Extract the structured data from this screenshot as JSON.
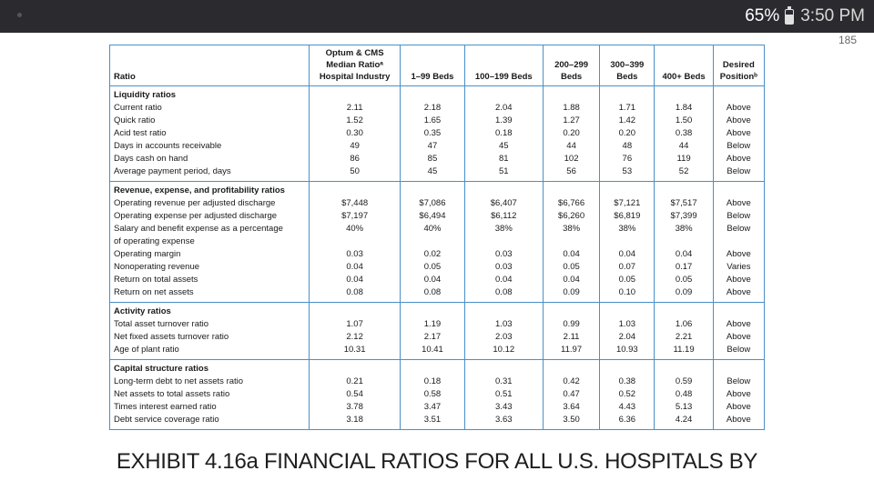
{
  "status_bar": {
    "battery": "65%",
    "time": "3:50 PM"
  },
  "page_number": "185",
  "table": {
    "headers": [
      "Ratio",
      "Optum & CMS Median Ratioᵃ Hospital Industry",
      "1–99 Beds",
      "100–199 Beds",
      "200–299 Beds",
      "300–399 Beds",
      "400+ Beds",
      "Desired Positionᵇ"
    ],
    "sections": [
      {
        "title": "Liquidity ratios",
        "rows": [
          [
            "Current ratio",
            "2.11",
            "2.18",
            "2.04",
            "1.88",
            "1.71",
            "1.84",
            "Above"
          ],
          [
            "Quick ratio",
            "1.52",
            "1.65",
            "1.39",
            "1.27",
            "1.42",
            "1.50",
            "Above"
          ],
          [
            "Acid test ratio",
            "0.30",
            "0.35",
            "0.18",
            "0.20",
            "0.20",
            "0.38",
            "Above"
          ],
          [
            "Days in accounts receivable",
            "49",
            "47",
            "45",
            "44",
            "48",
            "44",
            "Below"
          ],
          [
            "Days cash on hand",
            "86",
            "85",
            "81",
            "102",
            "76",
            "119",
            "Above"
          ],
          [
            "Average payment period, days",
            "50",
            "45",
            "51",
            "56",
            "53",
            "52",
            "Below"
          ]
        ]
      },
      {
        "title": "Revenue, expense, and profitability ratios",
        "rows": [
          [
            "Operating revenue per adjusted discharge",
            "$7,448",
            "$7,086",
            "$6,407",
            "$6,766",
            "$7,121",
            "$7,517",
            "Above"
          ],
          [
            "Operating expense per adjusted discharge",
            "$7,197",
            "$6,494",
            "$6,112",
            "$6,260",
            "$6,819",
            "$7,399",
            "Below"
          ],
          [
            "Salary and benefit expense as a percentage",
            "40%",
            "40%",
            "38%",
            "38%",
            "38%",
            "38%",
            "Below"
          ],
          [
            "of operating expense",
            "",
            "",
            "",
            "",
            "",
            "",
            ""
          ],
          [
            "Operating margin",
            "0.03",
            "0.02",
            "0.03",
            "0.04",
            "0.04",
            "0.04",
            "Above"
          ],
          [
            "Nonoperating revenue",
            "0.04",
            "0.05",
            "0.03",
            "0.05",
            "0.07",
            "0.17",
            "Varies"
          ],
          [
            "Return on total assets",
            "0.04",
            "0.04",
            "0.04",
            "0.04",
            "0.05",
            "0.05",
            "Above"
          ],
          [
            "Return on net assets",
            "0.08",
            "0.08",
            "0.08",
            "0.09",
            "0.10",
            "0.09",
            "Above"
          ]
        ]
      },
      {
        "title": "Activity ratios",
        "rows": [
          [
            "Total asset turnover ratio",
            "1.07",
            "1.19",
            "1.03",
            "0.99",
            "1.03",
            "1.06",
            "Above"
          ],
          [
            "Net fixed assets turnover ratio",
            "2.12",
            "2.17",
            "2.03",
            "2.11",
            "2.04",
            "2.21",
            "Above"
          ],
          [
            "Age of plant ratio",
            "10.31",
            "10.41",
            "10.12",
            "11.97",
            "10.93",
            "11.19",
            "Below"
          ]
        ]
      },
      {
        "title": "Capital structure ratios",
        "rows": [
          [
            "Long-term debt to net assets ratio",
            "0.21",
            "0.18",
            "0.31",
            "0.42",
            "0.38",
            "0.59",
            "Below"
          ],
          [
            "Net assets to total assets ratio",
            "0.54",
            "0.58",
            "0.51",
            "0.47",
            "0.52",
            "0.48",
            "Above"
          ],
          [
            "Times interest earned ratio",
            "3.78",
            "3.47",
            "3.43",
            "3.64",
            "4.43",
            "5.13",
            "Above"
          ],
          [
            "Debt service coverage ratio",
            "3.18",
            "3.51",
            "3.63",
            "3.50",
            "6.36",
            "4.24",
            "Above"
          ]
        ]
      }
    ]
  },
  "caption": "EXHIBIT 4.16a FINANCIAL RATIOS FOR ALL U.S. HOSPITALS BY"
}
